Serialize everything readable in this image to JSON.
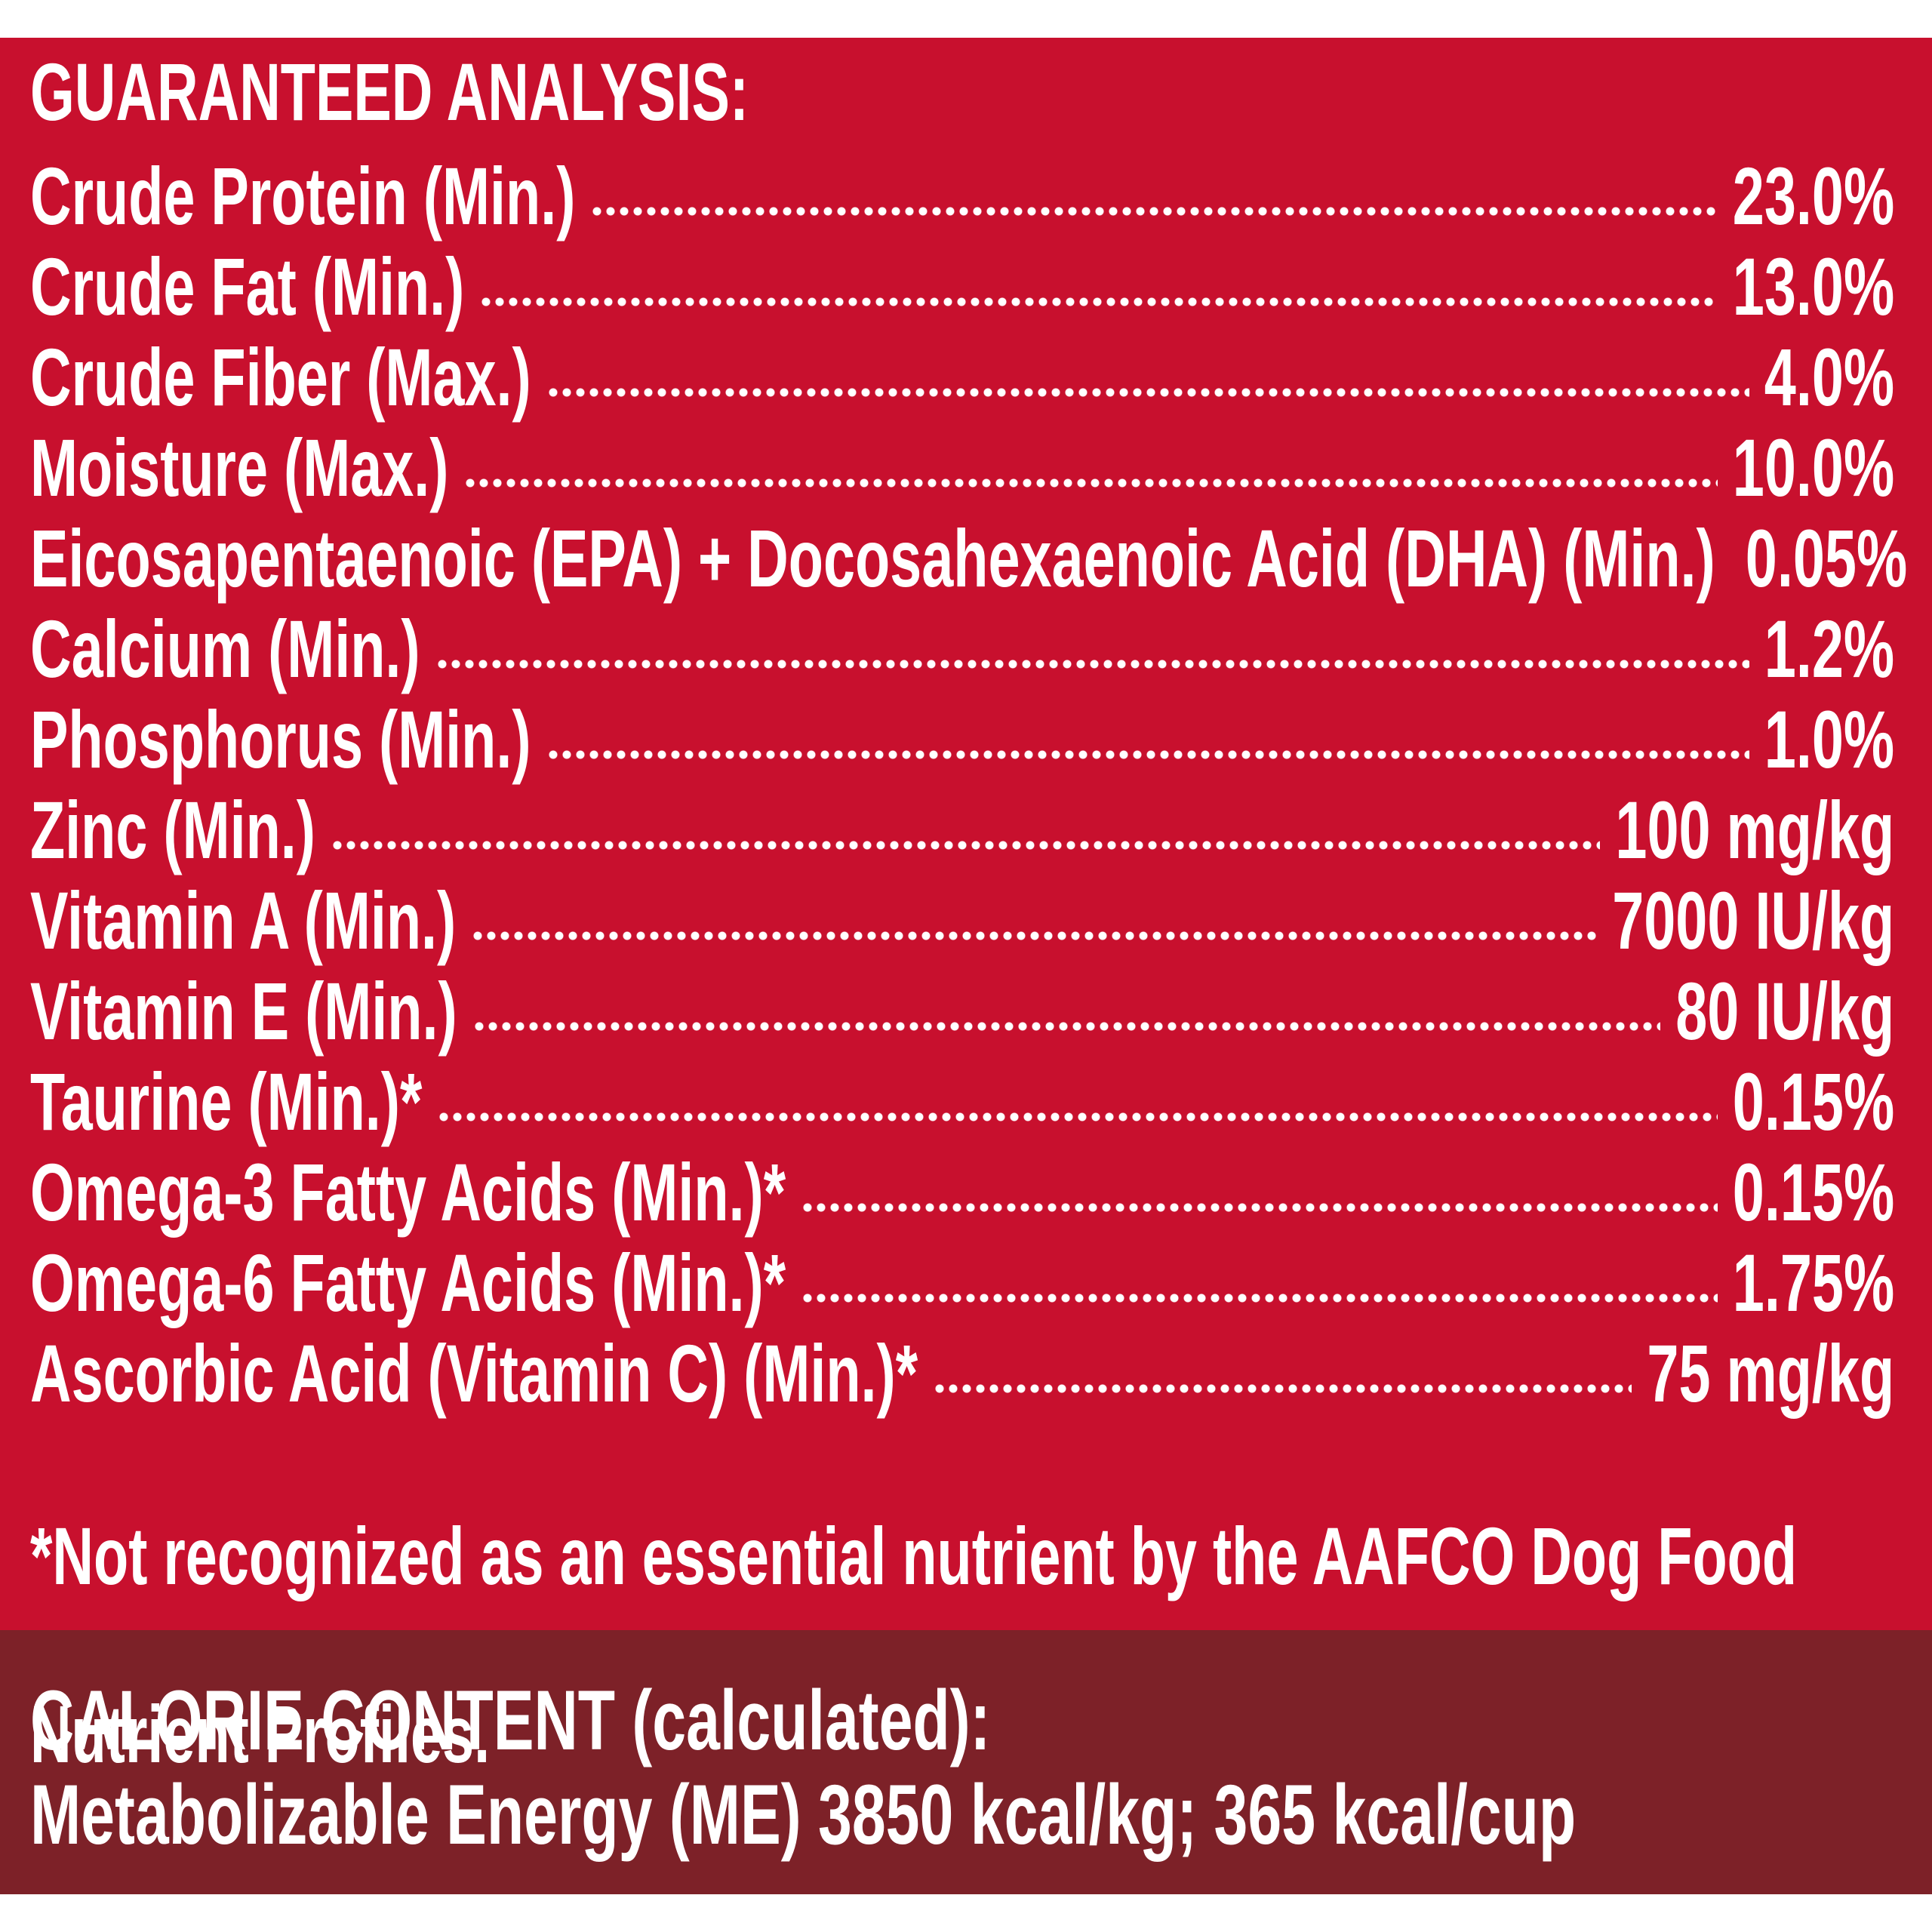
{
  "guaranteed_analysis": {
    "heading": "GUARANTEED ANALYSIS:",
    "items": [
      {
        "label": "Crude Protein (Min.)",
        "value": "23.0%"
      },
      {
        "label": "Crude Fat (Min.)",
        "value": "13.0%"
      },
      {
        "label": "Crude Fiber (Max.)",
        "value": "4.0%"
      },
      {
        "label": "Moisture (Max.)",
        "value": "10.0%"
      },
      {
        "label": "Eicosapentaenoic (EPA) + Docosahexaenoic Acid (DHA) (Min.)",
        "value": "0.05%"
      },
      {
        "label": "Calcium (Min.)",
        "value": "1.2%"
      },
      {
        "label": "Phosphorus (Min.)",
        "value": "1.0%"
      },
      {
        "label": "Zinc (Min.)",
        "value": "100 mg/kg"
      },
      {
        "label": "Vitamin A (Min.)",
        "value": "7000 IU/kg"
      },
      {
        "label": "Vitamin E (Min.)",
        "value": "80 IU/kg"
      },
      {
        "label": "Taurine (Min.)*",
        "value": "0.15%"
      },
      {
        "label": "Omega-3 Fatty Acids (Min.)*",
        "value": "0.15%"
      },
      {
        "label": "Omega-6 Fatty Acids (Min.)*",
        "value": "1.75%"
      },
      {
        "label": "Ascorbic Acid (Vitamin C) (Min.)*",
        "value": "75 mg/kg"
      }
    ],
    "footnote_line1": "*Not recognized as an essential nutrient by the AAFCO Dog Food",
    "footnote_line2": "Nutrient Profiles."
  },
  "calorie_content": {
    "heading": "CALORIE CONTENT (calculated):",
    "energy": "Metabolizable Energy (ME) 3850 kcal/kg;  365 kcal/cup"
  },
  "colors": {
    "main_panel": "#c8102e",
    "calorie_panel": "#7d2128",
    "text": "#ffffff"
  }
}
